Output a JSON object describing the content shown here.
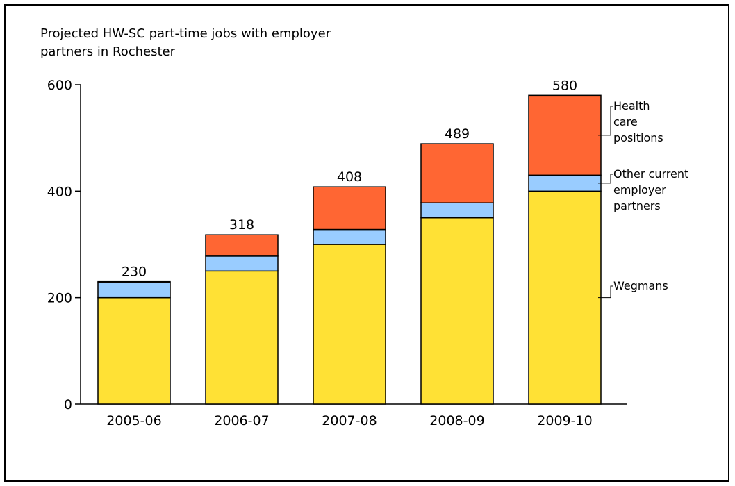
{
  "chart_data": {
    "type": "bar",
    "stacked": true,
    "title": "Projected HW-SC part-time jobs with employer partners in Rochester",
    "title_lines": [
      "Projected HW-SC part-time jobs with employer",
      "partners in Rochester"
    ],
    "categories": [
      "2005-06",
      "2006-07",
      "2007-08",
      "2008-09",
      "2009-10"
    ],
    "series": [
      {
        "name": "Wegmans",
        "name_lines": [
          "Wegmans"
        ],
        "color": "#FFE135",
        "values": [
          200,
          250,
          300,
          350,
          400
        ]
      },
      {
        "name": "Other current employer partners",
        "name_lines": [
          "Other current",
          "employer",
          "partners"
        ],
        "color": "#99CCFF",
        "values": [
          28,
          28,
          28,
          28,
          30
        ]
      },
      {
        "name": "Health care positions",
        "name_lines": [
          "Health",
          "care",
          "positions"
        ],
        "color": "#FF6633",
        "values": [
          2,
          40,
          80,
          111,
          150
        ]
      }
    ],
    "totals": [
      230,
      318,
      408,
      489,
      580
    ],
    "ylim": [
      0,
      600
    ],
    "yticks": [
      0,
      200,
      400,
      600
    ],
    "xlabel": "",
    "ylabel": "",
    "grid": false,
    "legend": "right"
  }
}
